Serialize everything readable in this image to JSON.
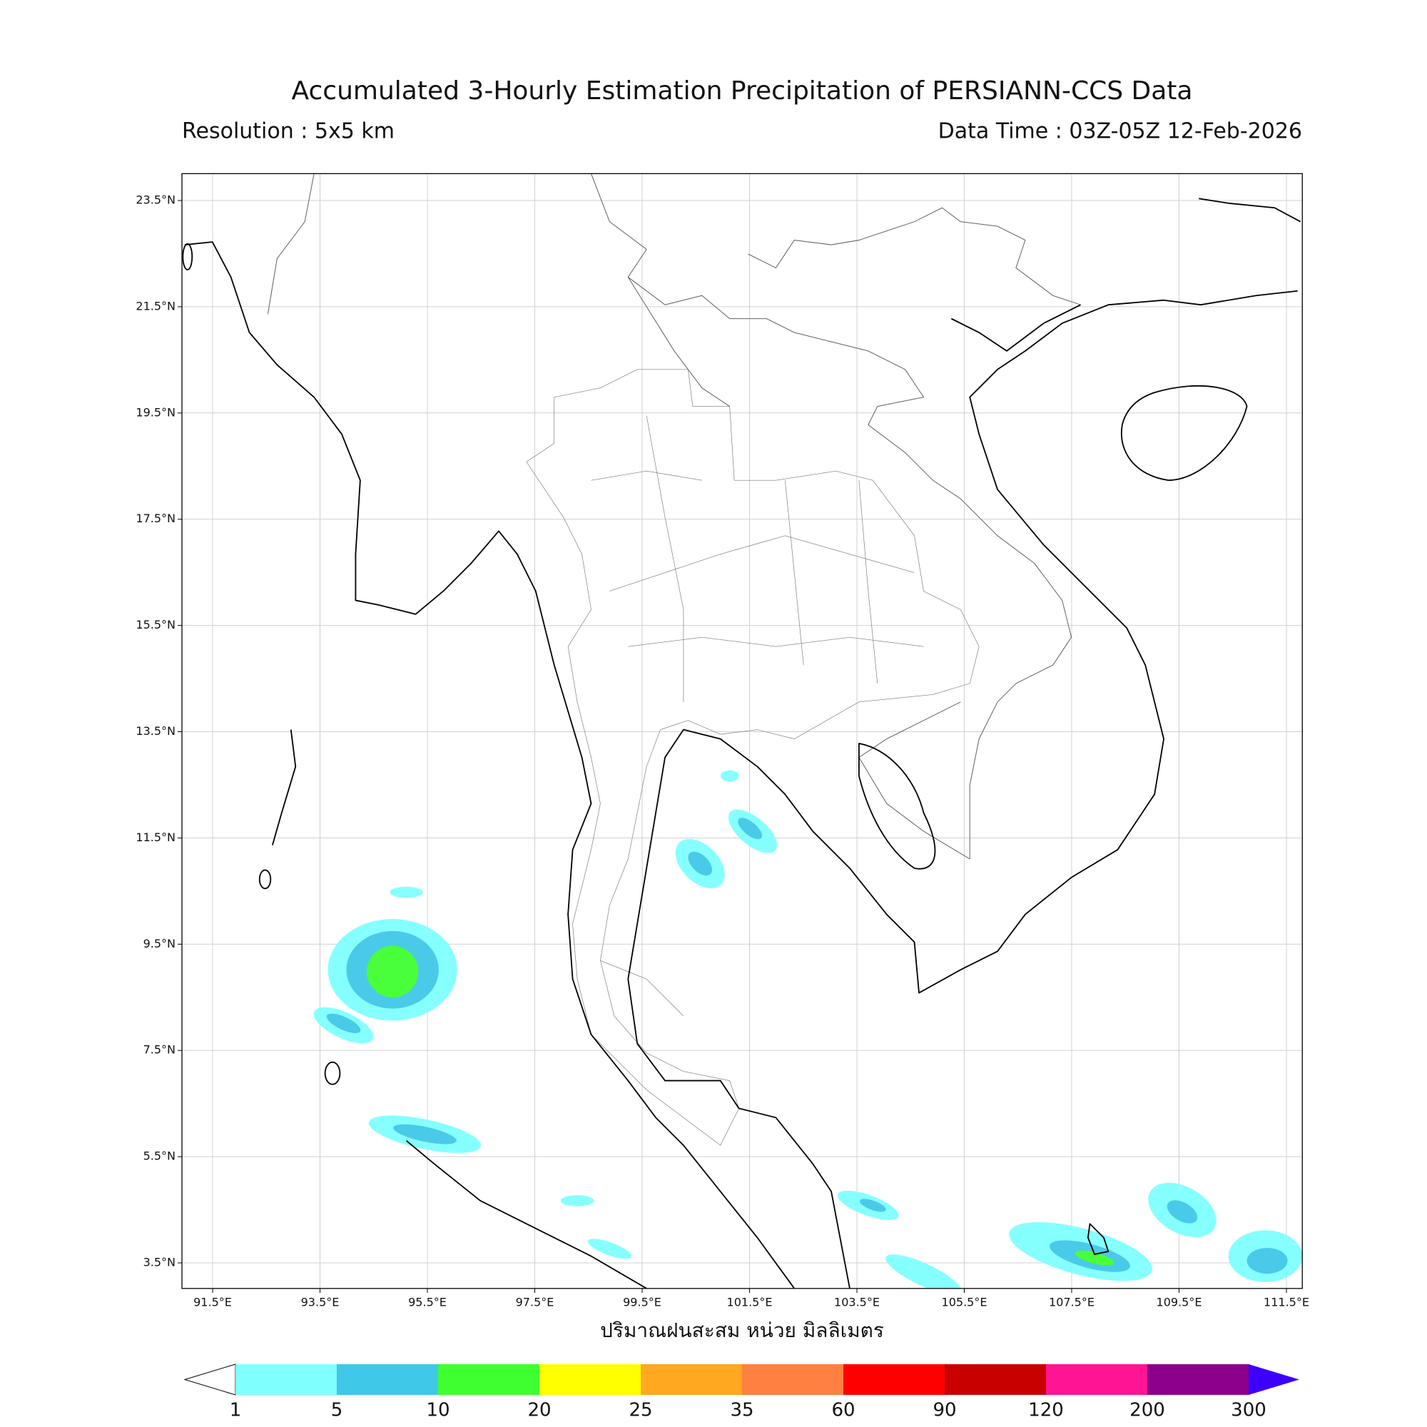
{
  "header": {
    "title": "Accumulated 3-Hourly Estimation Precipitation of PERSIANN-CCS Data",
    "resolution": "Resolution : 5x5 km",
    "data_time": "Data Time : 03Z-05Z 12-Feb-2026"
  },
  "map": {
    "grid": true,
    "lat_ticks": [
      {
        "value": 3.5,
        "label": "3.5°N"
      },
      {
        "value": 5.5,
        "label": "5.5°N"
      },
      {
        "value": 7.5,
        "label": "7.5°N"
      },
      {
        "value": 9.5,
        "label": "9.5°N"
      },
      {
        "value": 11.5,
        "label": "11.5°N"
      },
      {
        "value": 13.5,
        "label": "13.5°N"
      },
      {
        "value": 15.5,
        "label": "15.5°N"
      },
      {
        "value": 17.5,
        "label": "17.5°N"
      },
      {
        "value": 19.5,
        "label": "19.5°N"
      },
      {
        "value": 21.5,
        "label": "21.5°N"
      },
      {
        "value": 23.5,
        "label": "23.5°N"
      }
    ],
    "lon_ticks": [
      {
        "value": 91.5,
        "label": "91.5°E"
      },
      {
        "value": 93.5,
        "label": "93.5°E"
      },
      {
        "value": 95.5,
        "label": "95.5°E"
      },
      {
        "value": 97.5,
        "label": "97.5°E"
      },
      {
        "value": 99.5,
        "label": "99.5°E"
      },
      {
        "value": 101.5,
        "label": "101.5°E"
      },
      {
        "value": 103.5,
        "label": "103.5°E"
      },
      {
        "value": 105.5,
        "label": "105.5°E"
      },
      {
        "value": 107.5,
        "label": "107.5°E"
      },
      {
        "value": 109.5,
        "label": "109.5°E"
      },
      {
        "value": 111.5,
        "label": "111.5°E"
      }
    ]
  },
  "colorbar": {
    "label": "ปริมาณฝนสะสม หน่วย มิลลิเมตร",
    "levels": [
      1,
      5,
      10,
      20,
      25,
      35,
      60,
      90,
      120,
      200,
      300
    ],
    "colors": [
      "#80ffff",
      "#40c8e8",
      "#40ff30",
      "#ffff00",
      "#ffa820",
      "#ff8040",
      "#ff0000",
      "#c80000",
      "#ff1493",
      "#8b008b"
    ],
    "under_color": "#ffffff",
    "over_color": "#3c00ff"
  }
}
